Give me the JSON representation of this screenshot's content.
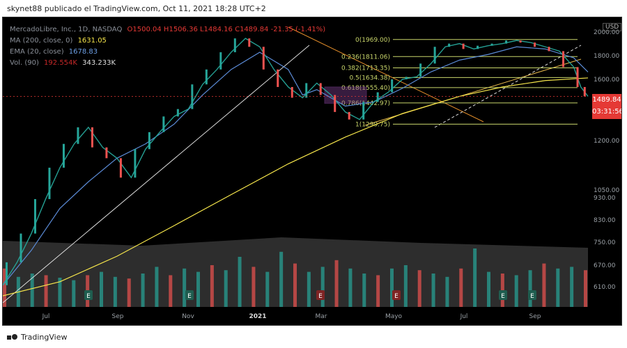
{
  "header": {
    "text": "skynet88 publicado el TradingView.com, Oct 11, 2021 18:28 UTC+2"
  },
  "legend": {
    "symbol": "MercadoLibre, Inc., 1D, NASDAQ",
    "ohlc": "O1500.04 H1506.36 L1484.16 C1489.84 -21.35 (-1.41%)",
    "ma_label": "MA (200, close, 0)",
    "ma_value": "1631.05",
    "ema_label": "EMA (20, close)",
    "ema_value": "1678.83",
    "vol_label": "Vol. (90)",
    "vol_value1": "192.554K",
    "vol_value2": "343.233K"
  },
  "currency": "USD",
  "current_price": {
    "value": "1489.84",
    "countdown": "03:31:56"
  },
  "footer": {
    "brand": "TradingView"
  },
  "colors": {
    "up": "#26a69a",
    "down": "#ef5350",
    "ma": "#f6e64b",
    "ema": "#5b8bd6",
    "fib": "#c9d66b",
    "trend": "#e08c2a"
  },
  "chart_data": {
    "type": "line",
    "title": "MercadoLibre, Inc., 1D, NASDAQ",
    "x_tick_labels": [
      "Jul",
      "Sep",
      "Nov",
      "2021",
      "Mar",
      "Mayo",
      "Jul",
      "Sep"
    ],
    "y_tick_labels": [
      "2000.00",
      "1800.00",
      "1600.00",
      "1489.84",
      "1200.00",
      "1050.00",
      "930.00",
      "830.00",
      "750.00",
      "670.00",
      "610.00"
    ],
    "scale": "log",
    "series": [
      {
        "name": "MA (200, close, 0)",
        "x": [
          0,
          40,
          80,
          120,
          160,
          200,
          240,
          280,
          320,
          350,
          380,
          410
        ],
        "values": [
          560,
          600,
          680,
          790,
          920,
          1070,
          1220,
          1370,
          1490,
          1560,
          1610,
          1631
        ]
      },
      {
        "name": "EMA (20, close)",
        "x": [
          0,
          20,
          40,
          60,
          80,
          100,
          120,
          140,
          160,
          180,
          200,
          210,
          220,
          240,
          260,
          280,
          300,
          320,
          340,
          360,
          380,
          400,
          410
        ],
        "values": [
          590,
          700,
          860,
          980,
          1100,
          1180,
          1300,
          1500,
          1700,
          1850,
          1700,
          1500,
          1540,
          1420,
          1450,
          1550,
          1680,
          1780,
          1830,
          1900,
          1880,
          1800,
          1679
        ]
      },
      {
        "name": "Price",
        "x": [
          0,
          10,
          20,
          30,
          40,
          50,
          60,
          70,
          80,
          90,
          100,
          110,
          120,
          130,
          140,
          150,
          160,
          170,
          180,
          190,
          200,
          210,
          220,
          230,
          240,
          250,
          260,
          270,
          280,
          290,
          300,
          310,
          320,
          330,
          340,
          350,
          360,
          370,
          380,
          390,
          400,
          405,
          410
        ],
        "values": [
          590,
          660,
          760,
          900,
          1050,
          1180,
          1280,
          1160,
          1100,
          1000,
          1150,
          1250,
          1350,
          1400,
          1580,
          1700,
          1850,
          1980,
          1900,
          1700,
          1560,
          1480,
          1590,
          1500,
          1380,
          1330,
          1450,
          1520,
          1620,
          1640,
          1750,
          1900,
          1930,
          1880,
          1910,
          1930,
          1960,
          1940,
          1900,
          1860,
          1720,
          1560,
          1490
        ]
      }
    ],
    "volume": [
      230,
      180,
      200,
      190,
      175,
      160,
      190,
      210,
      180,
      170,
      200,
      240,
      190,
      230,
      210,
      250,
      220,
      300,
      240,
      210,
      330,
      260,
      210,
      240,
      280,
      230,
      200,
      190,
      230,
      250,
      220,
      200,
      180,
      230,
      350,
      210,
      200,
      190,
      220,
      260,
      230,
      240,
      220
    ],
    "volume_overlay_label": "Vol. (90)",
    "fibonacci": [
      {
        "label": "0(1969.00)",
        "value": 1969.0
      },
      {
        "label": "0.236(1811.06)",
        "value": 1811.06
      },
      {
        "label": "0.382(1713.35)",
        "value": 1713.35
      },
      {
        "label": "0.5(1634.38)",
        "value": 1634.38
      },
      {
        "label": "0.618(1555.40)",
        "value": 1555.4
      },
      {
        "label": "0.786(1442.97)",
        "value": 1442.97
      },
      {
        "label": "1(1299.75)",
        "value": 1299.75
      }
    ],
    "earnings_markers": [
      "E",
      "E",
      "E",
      "E",
      "E",
      "E",
      "E"
    ],
    "grid": false
  }
}
